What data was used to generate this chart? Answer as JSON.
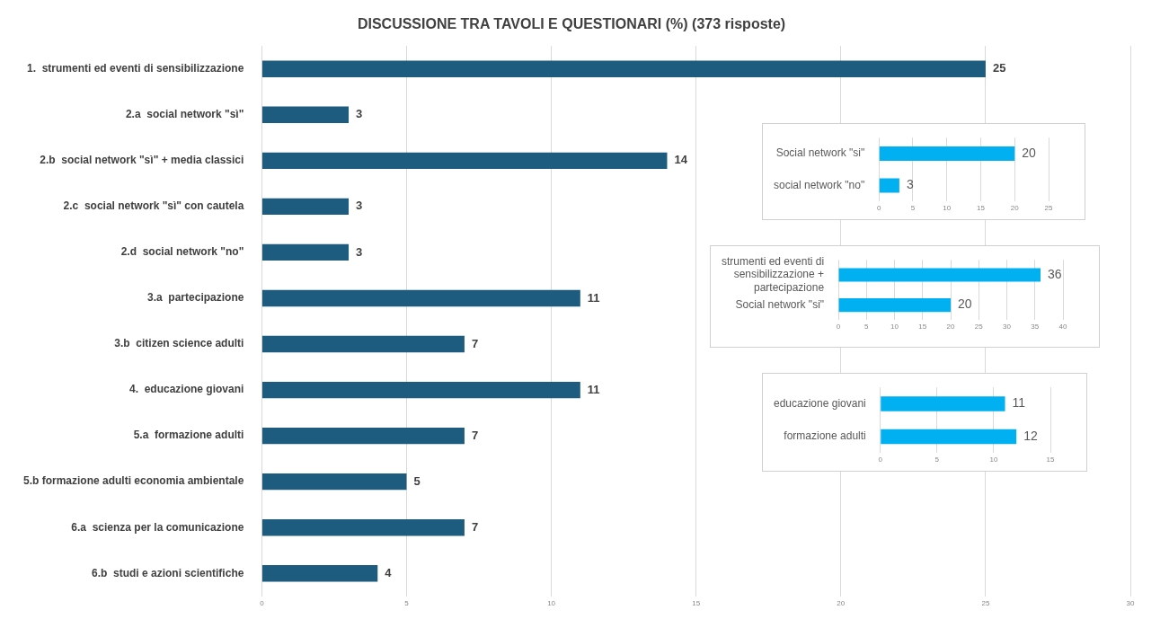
{
  "chart_data": [
    {
      "type": "bar",
      "orientation": "horizontal",
      "title": "DISCUSSIONE TRA TAVOLI E QUESTIONARI (%) (373 risposte)",
      "categories": [
        "1.  strumenti ed eventi di sensibilizzazione",
        "2.a  social network \"sì\"",
        "2.b  social network \"sì\" + media classici",
        "2.c  social network \"sì\" con cautela",
        "2.d  social network \"no\"",
        "3.a  partecipazione",
        "3.b  citizen science adulti",
        "4.  educazione giovani",
        "5.a  formazione adulti",
        "5.b formazione adulti economia ambientale",
        "6.a  scienza per la comunicazione",
        "6.b  studi e azioni scientifiche"
      ],
      "values": [
        25,
        3,
        14,
        3,
        3,
        11,
        7,
        11,
        7,
        5,
        7,
        4
      ],
      "color": "#1d5c7e",
      "xlim": [
        0,
        30
      ],
      "xticks": [
        0,
        5,
        10,
        15,
        20,
        25,
        30
      ],
      "grid": "x",
      "data_labels": true,
      "legend": false
    },
    {
      "type": "bar",
      "orientation": "horizontal",
      "categories": [
        "Social network \"si\"",
        "social network \"no\""
      ],
      "values": [
        20,
        3
      ],
      "color": "#00b0f0",
      "xlim": [
        0,
        25
      ],
      "xticks": [
        0,
        5,
        10,
        15,
        20,
        25
      ],
      "grid": "x",
      "data_labels": true,
      "legend": false
    },
    {
      "type": "bar",
      "orientation": "horizontal",
      "categories": [
        "strumenti ed eventi di sensibilizzazione + partecipazione",
        "Social network \"si\""
      ],
      "values": [
        36,
        20
      ],
      "color": "#00b0f0",
      "xlim": [
        0,
        40
      ],
      "xticks": [
        0,
        5,
        10,
        15,
        20,
        25,
        30,
        35,
        40
      ],
      "grid": "x",
      "data_labels": true,
      "legend": false
    },
    {
      "type": "bar",
      "orientation": "horizontal",
      "categories": [
        "educazione giovani",
        "formazione adulti"
      ],
      "values": [
        11,
        12
      ],
      "color": "#00b0f0",
      "xlim": [
        0,
        15
      ],
      "xticks": [
        0,
        5,
        10,
        15
      ],
      "grid": "x",
      "data_labels": true,
      "legend": false
    }
  ]
}
